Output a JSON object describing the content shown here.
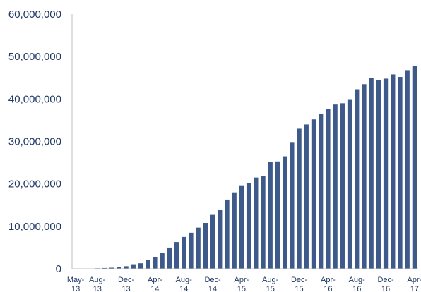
{
  "chart_data": {
    "type": "bar",
    "title": "",
    "xlabel": "",
    "ylabel": "",
    "ylim": [
      0,
      60000000
    ],
    "yticks": [
      "0",
      "10,000,000",
      "20,000,000",
      "30,000,000",
      "40,000,000",
      "50,000,000",
      "60,000,000"
    ],
    "grid": false,
    "bar_color": "#3d5a8a",
    "text_color": "#1f3864",
    "categories": [
      "May-13",
      "Jun-13",
      "Jul-13",
      "Aug-13",
      "Sep-13",
      "Oct-13",
      "Nov-13",
      "Dec-13",
      "Jan-14",
      "Feb-14",
      "Mar-14",
      "Apr-14",
      "May-14",
      "Jun-14",
      "Jul-14",
      "Aug-14",
      "Sep-14",
      "Oct-14",
      "Nov-14",
      "Dec-14",
      "Jan-15",
      "Feb-15",
      "Mar-15",
      "Apr-15",
      "May-15",
      "Jun-15",
      "Jul-15",
      "Aug-15",
      "Sep-15",
      "Oct-15",
      "Nov-15",
      "Dec-15",
      "Jan-16",
      "Feb-16",
      "Mar-16",
      "Apr-16",
      "May-16",
      "Jun-16",
      "Jul-16",
      "Aug-16",
      "Sep-16",
      "Oct-16",
      "Nov-16",
      "Dec-16",
      "Jan-17",
      "Feb-17",
      "Mar-17",
      "Apr-17"
    ],
    "values": [
      30000,
      50000,
      80000,
      120000,
      180000,
      250000,
      400000,
      600000,
      900000,
      1300000,
      2000000,
      2800000,
      3800000,
      5000000,
      6300000,
      7500000,
      8500000,
      9700000,
      10800000,
      12700000,
      13800000,
      16300000,
      18000000,
      19500000,
      20200000,
      21500000,
      21800000,
      25200000,
      25300000,
      26500000,
      29700000,
      33000000,
      34000000,
      35200000,
      36400000,
      37600000,
      38700000,
      39000000,
      39800000,
      42300000,
      43500000,
      45000000,
      44500000,
      44800000,
      45800000,
      45200000,
      46800000,
      47800000
    ],
    "x_tick_labels": [
      {
        "index": 0,
        "line1": "May-",
        "line2": "13"
      },
      {
        "index": 3,
        "line1": "Aug-",
        "line2": "13"
      },
      {
        "index": 7,
        "line1": "Dec-",
        "line2": "13"
      },
      {
        "index": 11,
        "line1": "Apr-",
        "line2": "14"
      },
      {
        "index": 15,
        "line1": "Aug-",
        "line2": "14"
      },
      {
        "index": 19,
        "line1": "Dec-",
        "line2": "14"
      },
      {
        "index": 23,
        "line1": "Apr-",
        "line2": "15"
      },
      {
        "index": 27,
        "line1": "Aug-",
        "line2": "15"
      },
      {
        "index": 31,
        "line1": "Dec-",
        "line2": "15"
      },
      {
        "index": 35,
        "line1": "Apr-",
        "line2": "16"
      },
      {
        "index": 39,
        "line1": "Aug-",
        "line2": "16"
      },
      {
        "index": 43,
        "line1": "Dec-",
        "line2": "16"
      },
      {
        "index": 47,
        "line1": "Apr-",
        "line2": "17"
      }
    ]
  }
}
